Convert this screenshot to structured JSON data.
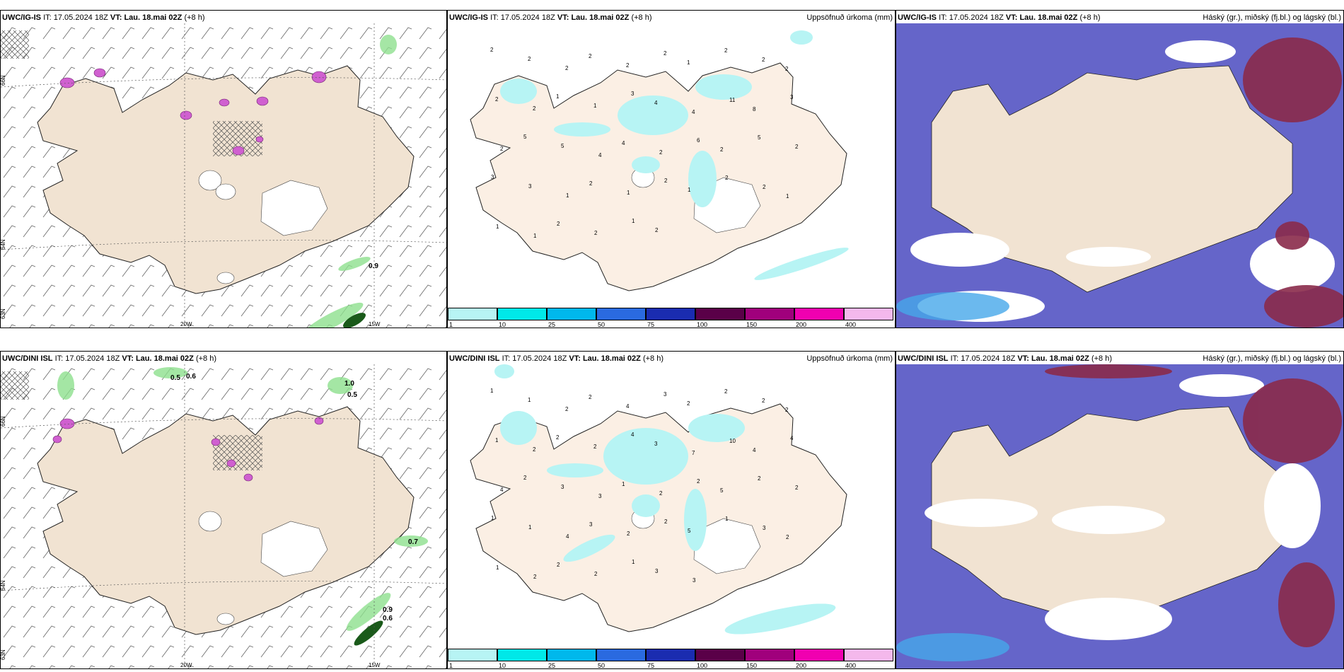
{
  "rows": [
    {
      "model": "UWC/IG-IS",
      "it_label": "IT:",
      "it_value": "17.05.2024 18Z",
      "vt_label": "VT:",
      "vt_value": "Lau. 18.mai 02Z",
      "offset": "(+8 h)",
      "precip_title": "Uppsöfnuð úrkoma (mm)",
      "cloud_title": "Háský (gr.), miðský (fj.bl.) og lágský (bl.)",
      "left_labels": [
        "0.9"
      ],
      "precip_labels": [
        "2",
        "2",
        "2",
        "2",
        "2",
        "2",
        "1",
        "2",
        "2",
        "2",
        "2",
        "2",
        "1",
        "1",
        "3",
        "4",
        "4",
        "11",
        "8",
        "3",
        "2",
        "5",
        "5",
        "4",
        "4",
        "2",
        "6",
        "2",
        "5",
        "2",
        "3",
        "3",
        "1",
        "2",
        "1",
        "2",
        "1",
        "2",
        "2",
        "1",
        "1",
        "1",
        "2",
        "2",
        "1",
        "2"
      ]
    },
    {
      "model": "UWC/DINI ISL",
      "it_label": "IT:",
      "it_value": "17.05.2024 18Z",
      "vt_label": "VT:",
      "vt_value": "Lau. 18.mai 02Z",
      "offset": "(+8 h)",
      "precip_title": "Uppsöfnuð úrkoma (mm)",
      "cloud_title": "Háský (gr.), miðský (fj.bl.) og lágský (bl.)",
      "left_labels": [
        "0.5",
        "0.6",
        "1.0",
        "0.5",
        "0.7",
        "0.9",
        "0.6"
      ],
      "precip_labels": [
        "1",
        "1",
        "2",
        "2",
        "4",
        "3",
        "2",
        "2",
        "2",
        "2",
        "1",
        "2",
        "2",
        "2",
        "4",
        "3",
        "7",
        "10",
        "4",
        "4",
        "4",
        "2",
        "3",
        "3",
        "1",
        "2",
        "2",
        "5",
        "2",
        "2",
        "1",
        "1",
        "4",
        "3",
        "2",
        "2",
        "5",
        "1",
        "3",
        "2",
        "1",
        "2",
        "2",
        "2",
        "1",
        "3",
        "3"
      ]
    }
  ],
  "axis_labels": {
    "lat_66": "66N",
    "lat_64": "64N",
    "lat_63": "63N",
    "lon_20": "20W",
    "lon_15": "15W"
  },
  "colorbar": {
    "ticks": [
      "1",
      "10",
      "25",
      "50",
      "75",
      "100",
      "150",
      "200",
      "400"
    ],
    "colors": [
      "#b7f4f4",
      "#00e8e8",
      "#00b8ec",
      "#2a6ae0",
      "#1a2cb0",
      "#5a0048",
      "#a0007c",
      "#f000b0",
      "#f4b8ec"
    ]
  },
  "colors": {
    "land": "#f1e3d2",
    "land_precip": "#fbefe4",
    "sea_cloud": "#6565c9",
    "high_cloud": "#8a2a4a",
    "precip_light": "#b7f4f4"
  }
}
